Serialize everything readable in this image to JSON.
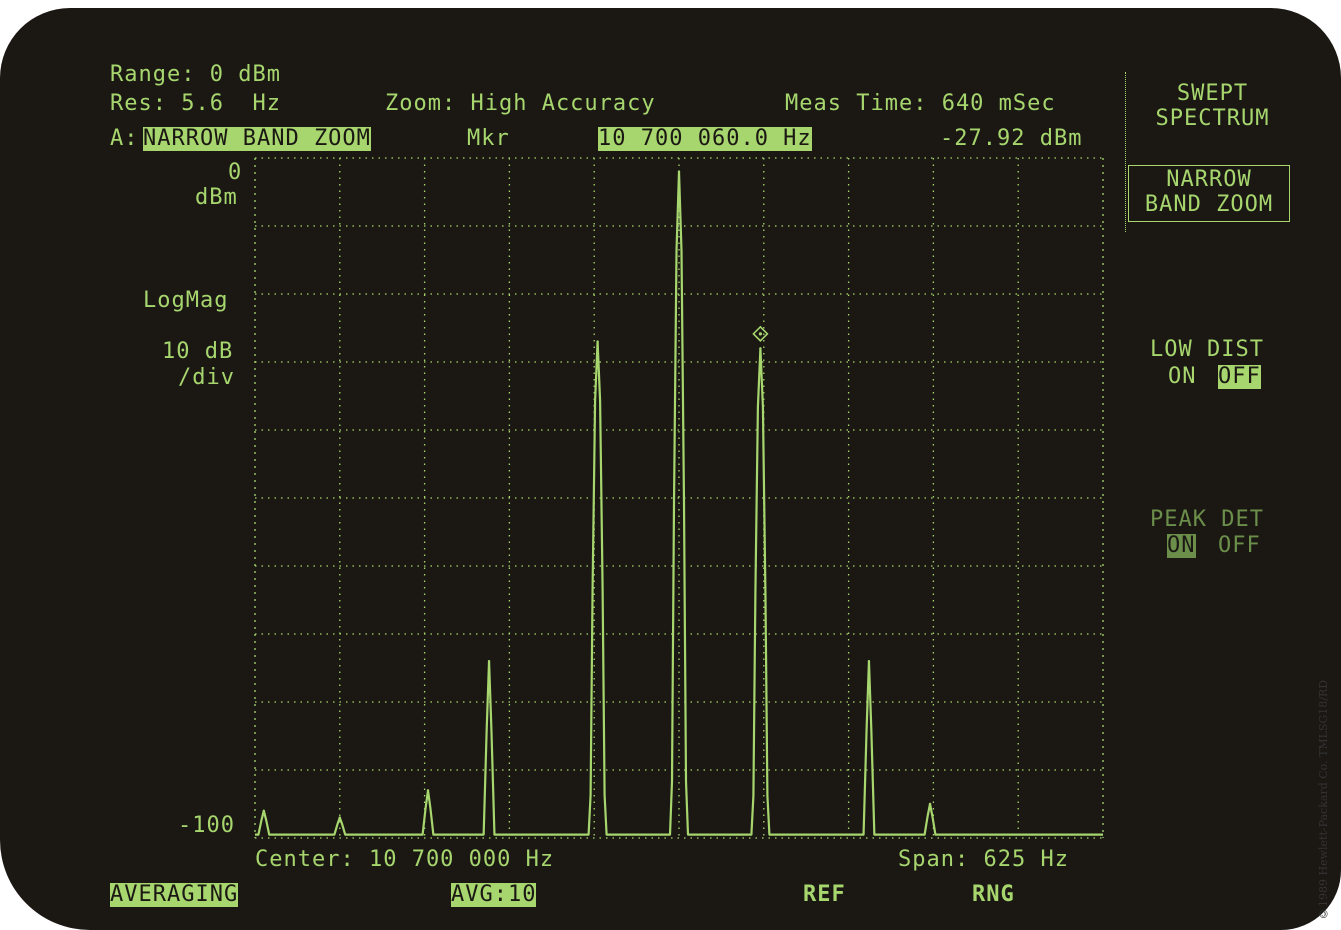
{
  "header": {
    "range": "Range: 0 dBm",
    "res": "Res: 5.6  Hz",
    "zoom": "Zoom: High Accuracy",
    "meas_time": "Meas Time: 640 mSec",
    "trace_prefix": "A:",
    "trace_mode": "NARROW BAND ZOOM",
    "marker_label": "Mkr",
    "marker_freq": "10 700 060.0 Hz",
    "marker_level": "-27.92 dBm"
  },
  "y_axis": {
    "top_value": "0",
    "top_unit": "dBm",
    "scale_type": "LogMag",
    "scale_value": "10 dB",
    "scale_unit": "/div",
    "bottom_value": "-100"
  },
  "footer": {
    "center": "Center: 10 700 000 Hz",
    "span": "Span: 625 Hz"
  },
  "status": {
    "averaging": "AVERAGING",
    "avg_count": "AVG:10",
    "ref": "REF",
    "rng": "RNG"
  },
  "softkeys": {
    "menu_line1": "SWEPT",
    "menu_line2": "SPECTRUM",
    "nbz_line1": "NARROW",
    "nbz_line2": "BAND ZOOM",
    "low_dist_label": "LOW DIST",
    "low_dist_on": "ON",
    "low_dist_off": "OFF",
    "peak_det_label": "PEAK DET",
    "peak_det_on": "ON",
    "peak_det_off": "OFF"
  },
  "copyright": "©1989 Hewlett-Packard Co. TMLSG18/RD",
  "colors": {
    "trace": "#a6d66d",
    "background": "#1b1814"
  },
  "chart_data": {
    "type": "line",
    "xlabel": "",
    "ylabel": "",
    "x_unit": "Hz",
    "x_center": 10700000,
    "x_span": 625,
    "xlim": [
      10699687.5,
      10700312.5
    ],
    "ylim": [
      -100,
      0
    ],
    "grid": true,
    "marker": {
      "x": 10700060.0,
      "y": -27.92
    },
    "peaks": [
      {
        "x": 10699694,
        "y": -96
      },
      {
        "x": 10699750,
        "y": -97
      },
      {
        "x": 10699815,
        "y": -93
      },
      {
        "x": 10699860,
        "y": -74
      },
      {
        "x": 10699940,
        "y": -27
      },
      {
        "x": 10700000,
        "y": -2
      },
      {
        "x": 10700060,
        "y": -28
      },
      {
        "x": 10700140,
        "y": -74
      },
      {
        "x": 10700185,
        "y": -95
      }
    ]
  }
}
